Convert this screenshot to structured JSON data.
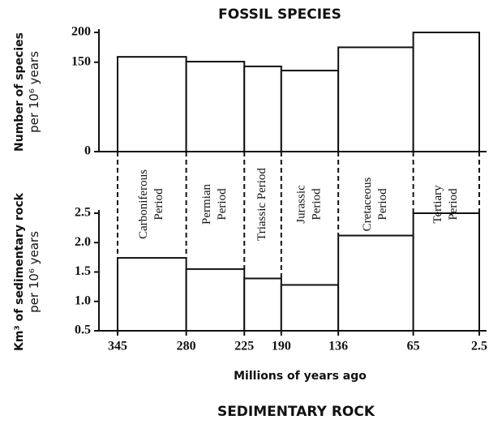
{
  "chart_data": [
    {
      "type": "histogram",
      "title": "FOSSIL SPECIES",
      "ylabel": [
        "Number of species",
        "per 10⁶ years"
      ],
      "categories": [
        [
          "Carboniferous",
          "Period"
        ],
        [
          "Permian",
          "Period"
        ],
        [
          "Triassic Period"
        ],
        [
          "Jurassic",
          "Period"
        ],
        [
          "Cretaceous",
          "Period"
        ],
        [
          "Tertiary",
          "Period"
        ]
      ],
      "bins": [
        345,
        280,
        225,
        190,
        136,
        65,
        2.5
      ],
      "values": [
        159,
        151,
        143,
        136,
        175,
        200
      ],
      "xlim": [
        345,
        2.5
      ],
      "ylim": [
        0,
        200
      ],
      "yticks": [
        0,
        150,
        200
      ],
      "color": "#ffffff"
    },
    {
      "type": "histogram",
      "title": "SEDIMENTARY ROCK",
      "ylabel": [
        "Km³ of sedimentary rock",
        "per 10⁶ years"
      ],
      "xlabel": "Millions of years ago",
      "bins": [
        345,
        280,
        225,
        190,
        136,
        65,
        2.5
      ],
      "values": [
        1.74,
        1.55,
        1.39,
        1.28,
        2.12,
        2.5
      ],
      "xlim": [
        345,
        2.5
      ],
      "xticks": [
        345,
        280,
        225,
        190,
        136,
        65,
        2.5
      ],
      "ylim": [
        0.5,
        2.5
      ],
      "yticks": [
        0.5,
        {
          "value": 1,
          "label": "1.0"
        },
        1.5,
        {
          "value": 2,
          "label": "2.0"
        },
        2.5
      ],
      "color": "#ffffff"
    }
  ]
}
